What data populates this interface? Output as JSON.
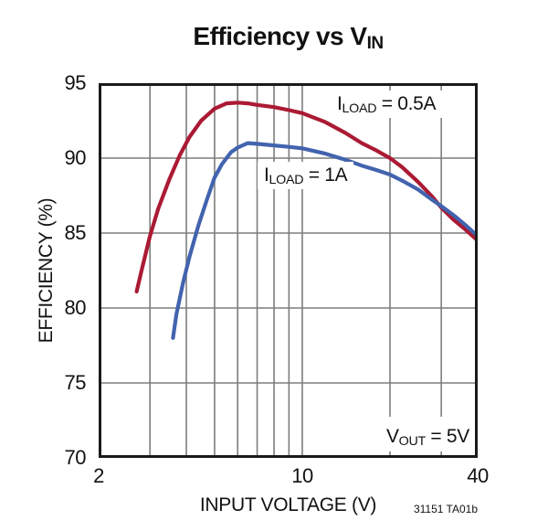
{
  "title": {
    "pre": "Efficiency vs V",
    "sub": "IN"
  },
  "footnote": "31151 TA01b",
  "colors": {
    "background": "#ffffff",
    "axis": "#1a1a1a",
    "grid": "#7d7d7d",
    "series_red": "#AB1A34",
    "series_blue": "#4263AE"
  },
  "chart_data": {
    "type": "line",
    "title": "Efficiency vs VIN",
    "xlabel": "INPUT VOLTAGE (V)",
    "ylabel": "EFFICIENCY (%)",
    "x_scale": "log",
    "xlim": [
      2,
      40
    ],
    "ylim": [
      70,
      95
    ],
    "x_ticks": [
      2,
      10,
      40
    ],
    "y_ticks": [
      95,
      90,
      85,
      80,
      75,
      70
    ],
    "x_gridlines": [
      3,
      4,
      5,
      6,
      7,
      8,
      9,
      10,
      20,
      30
    ],
    "y_gridlines": [
      75,
      80,
      85,
      90
    ],
    "grid": true,
    "legend_position": "inline-labels",
    "series": [
      {
        "name": "ILOAD = 0.5A",
        "legend": {
          "pre": "I",
          "sub": "LOAD",
          "post": " = 0.5A"
        },
        "color": "#AB1A34",
        "points": [
          [
            2.7,
            81.1
          ],
          [
            2.8,
            82.4
          ],
          [
            3.0,
            84.8
          ],
          [
            3.2,
            86.6
          ],
          [
            3.5,
            88.6
          ],
          [
            3.8,
            90.2
          ],
          [
            4.1,
            91.4
          ],
          [
            4.5,
            92.5
          ],
          [
            5.0,
            93.3
          ],
          [
            5.5,
            93.65
          ],
          [
            6.0,
            93.7
          ],
          [
            6.5,
            93.65
          ],
          [
            7.0,
            93.55
          ],
          [
            8.0,
            93.4
          ],
          [
            9.0,
            93.2
          ],
          [
            10,
            93.0
          ],
          [
            12,
            92.4
          ],
          [
            14,
            91.7
          ],
          [
            16,
            91.0
          ],
          [
            18,
            90.5
          ],
          [
            20,
            90.0
          ],
          [
            22,
            89.4
          ],
          [
            25,
            88.4
          ],
          [
            28,
            87.4
          ],
          [
            30,
            86.7
          ],
          [
            33,
            85.9
          ],
          [
            36,
            85.3
          ],
          [
            40,
            84.5
          ]
        ]
      },
      {
        "name": "ILOAD = 1A",
        "legend": {
          "pre": "I",
          "sub": "LOAD",
          "post": " = 1A"
        },
        "color": "#4263AE",
        "points": [
          [
            3.6,
            78.0
          ],
          [
            3.7,
            79.6
          ],
          [
            3.9,
            81.7
          ],
          [
            4.1,
            83.4
          ],
          [
            4.4,
            85.5
          ],
          [
            4.7,
            87.2
          ],
          [
            5.0,
            88.7
          ],
          [
            5.3,
            89.6
          ],
          [
            5.7,
            90.4
          ],
          [
            6.0,
            90.7
          ],
          [
            6.5,
            91.0
          ],
          [
            7.0,
            90.95
          ],
          [
            8.0,
            90.85
          ],
          [
            9.0,
            90.75
          ],
          [
            10,
            90.65
          ],
          [
            12,
            90.3
          ],
          [
            14,
            89.9
          ],
          [
            16,
            89.5
          ],
          [
            18,
            89.2
          ],
          [
            20,
            88.9
          ],
          [
            22,
            88.5
          ],
          [
            25,
            87.9
          ],
          [
            28,
            87.2
          ],
          [
            30,
            86.8
          ],
          [
            33,
            86.2
          ],
          [
            36,
            85.6
          ],
          [
            40,
            84.8
          ]
        ]
      }
    ],
    "annotation": {
      "pre": "V",
      "sub": "OUT",
      "post": " = 5V"
    }
  }
}
